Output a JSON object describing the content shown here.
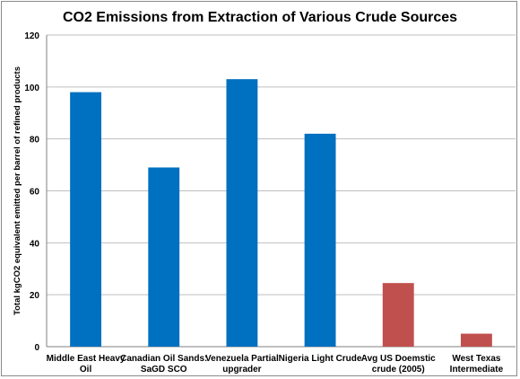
{
  "chart_data": {
    "type": "bar",
    "title": "CO2 Emissions from Extraction of Various Crude Sources",
    "xlabel": "",
    "ylabel": "Total kgCO2 equivalent emitted per barrel of refined products",
    "ylim": [
      0,
      120
    ],
    "yticks": [
      0,
      20,
      40,
      60,
      80,
      100,
      120
    ],
    "grid": "horizontal",
    "legend": "none",
    "categories": [
      [
        "Middle East Heavy",
        "Oil"
      ],
      [
        "Canadian Oil Sands:",
        "SaGD SCO"
      ],
      [
        "Venezuela Partial",
        "upgrader"
      ],
      [
        "Nigeria Light Crude"
      ],
      [
        "Avg US Doemstic",
        "crude (2005)"
      ],
      [
        "West Texas",
        "Intermediate"
      ]
    ],
    "values": [
      98,
      69,
      103,
      82,
      24.5,
      5
    ],
    "colors": [
      "#0070c0",
      "#0070c0",
      "#0070c0",
      "#0070c0",
      "#c0504d",
      "#c0504d"
    ]
  }
}
